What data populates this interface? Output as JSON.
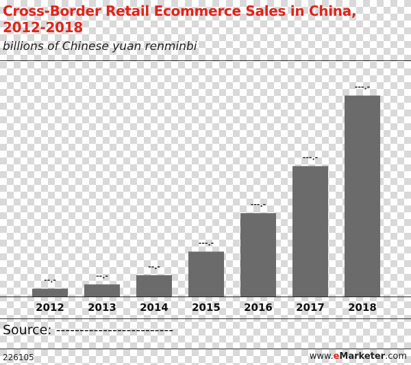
{
  "title": "Cross-Border Retail Ecommerce Sales in China, 2012-2018",
  "subtitle": "billions of Chinese yuan renminbi",
  "source": "Source: -------------------------",
  "footer": {
    "chart_id": "226105",
    "brand_prefix": "www.",
    "brand_e": "e",
    "brand_rest": "Marketer",
    "brand_suffix": ".com"
  },
  "colors": {
    "bar": "#6b6b6b",
    "title": "#e2231a",
    "baseline": "#222222"
  },
  "chart_data": {
    "type": "bar",
    "title": "Cross-Border Retail Ecommerce Sales in China, 2012-2018",
    "subtitle": "billions of Chinese yuan renminbi",
    "xlabel": "",
    "ylabel": "",
    "categories": [
      "2012",
      "2013",
      "2014",
      "2015",
      "2016",
      "2017",
      "2018"
    ],
    "values": [
      11,
      17,
      30,
      63,
      117,
      183,
      282
    ],
    "data_labels": [
      "--.-",
      "--.-",
      "--.-",
      "---.-",
      "---.-",
      "---.-",
      "---.-"
    ],
    "ylim": [
      0,
      320
    ],
    "grid": false,
    "legend": "none"
  }
}
